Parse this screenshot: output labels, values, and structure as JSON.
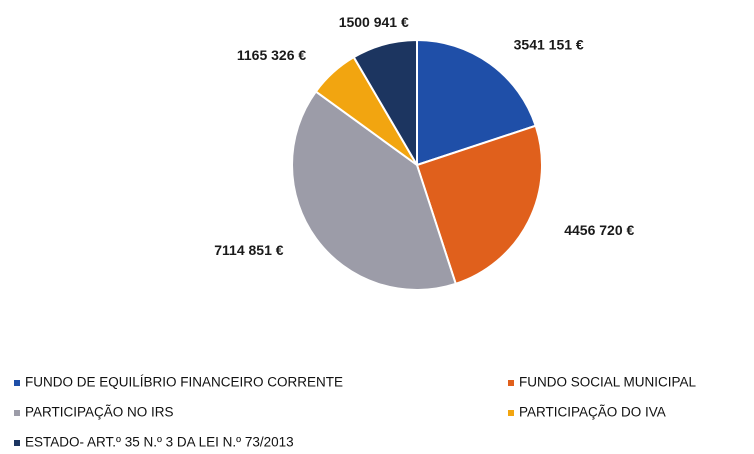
{
  "chart_data": {
    "type": "pie",
    "categories": [
      "FUNDO DE EQUILÍBRIO FINANCEIRO CORRENTE",
      "FUNDO SOCIAL MUNICIPAL",
      "PARTICIPAÇÃO NO IRS",
      "PARTICIPAÇÃO DO IVA",
      "ESTADO- ART.º 35 N.º 3 DA LEI N.º 73/2013"
    ],
    "values": [
      3541151,
      4456720,
      7114851,
      1165326,
      1500941
    ],
    "value_labels": [
      "3541 151 €",
      "4456 720 €",
      "7114 851 €",
      "1165 326 €",
      "1500 941 €"
    ],
    "colors": [
      "#1f4fa8",
      "#e0601c",
      "#9c9ca8",
      "#f2a510",
      "#1c3560"
    ]
  }
}
